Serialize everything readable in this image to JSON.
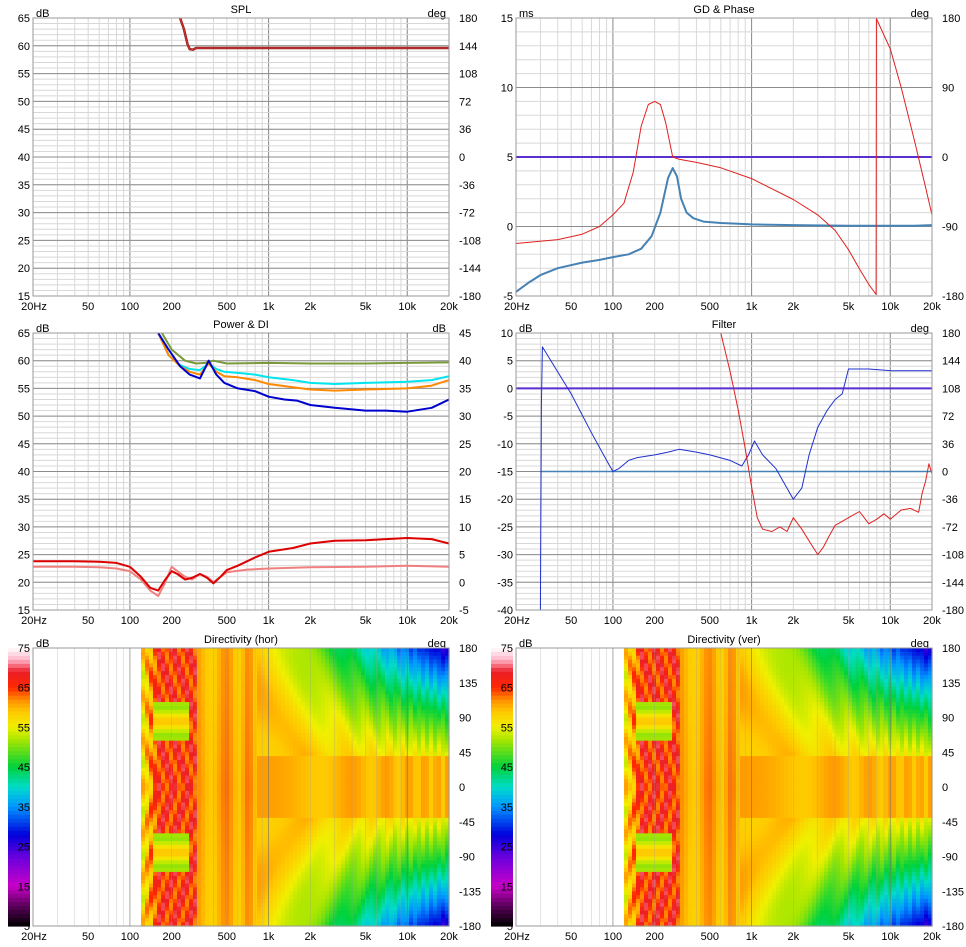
{
  "chart_data": [
    {
      "type": "line",
      "title": "SPL",
      "ylabel": "dB",
      "y2label": "deg",
      "xscale": "log",
      "xlim": [
        20,
        20000
      ],
      "ylim": [
        15,
        65
      ],
      "y2lim": [
        -180,
        180
      ],
      "x_ticks": [
        "20Hz",
        "50",
        "100",
        "200",
        "500",
        "1k",
        "2k",
        "5k",
        "10k",
        "20k"
      ],
      "y_ticks": [
        "65",
        "60",
        "55",
        "50",
        "45",
        "40",
        "35",
        "30",
        "25",
        "20",
        "15"
      ],
      "y2_ticks": [
        "180",
        "144",
        "108",
        "72",
        "36",
        "0",
        "-36",
        "-72",
        "-108",
        "-144",
        "-180"
      ],
      "grid": true,
      "series": [
        {
          "color": "#8b2020",
          "width": 2.5,
          "axis": "y",
          "x": [
            230,
            245,
            260,
            270,
            285,
            300,
            20000
          ],
          "y": [
            65,
            63,
            60.3,
            59.4,
            59.3,
            59.6,
            59.6
          ]
        },
        {
          "color": "#e03030",
          "width": 1,
          "axis": "y",
          "x": [
            230,
            245,
            260,
            270,
            285,
            300,
            20000
          ],
          "y": [
            65,
            63,
            60.3,
            59.4,
            59.3,
            59.6,
            59.6
          ]
        }
      ]
    },
    {
      "type": "line",
      "title": "GD & Phase",
      "ylabel": "ms",
      "y2label": "deg",
      "xscale": "log",
      "xlim": [
        20,
        20000
      ],
      "ylim": [
        -5,
        15
      ],
      "y2lim": [
        -180,
        180
      ],
      "x_ticks": [
        "20Hz",
        "50",
        "100",
        "200",
        "500",
        "1k",
        "2k",
        "5k",
        "10k",
        "20k"
      ],
      "y_ticks": [
        "15",
        "10",
        "5",
        "0",
        "-5"
      ],
      "y2_ticks": [
        "180",
        "90",
        "0",
        "-90",
        "-180"
      ],
      "grid": true,
      "series": [
        {
          "color": "#5a2fd0",
          "width": 2,
          "axis": "y",
          "x": [
            20,
            20000
          ],
          "y": [
            5,
            5
          ]
        },
        {
          "color": "#4682b4",
          "width": 2,
          "axis": "y",
          "x": [
            20,
            25,
            30,
            40,
            60,
            80,
            100,
            130,
            160,
            190,
            220,
            250,
            270,
            290,
            310,
            340,
            380,
            450,
            600,
            800,
            1000,
            2000,
            5000,
            10000,
            15000,
            20000
          ],
          "y": [
            -4.7,
            -4,
            -3.5,
            -3.0,
            -2.6,
            -2.4,
            -2.2,
            -2.0,
            -1.6,
            -0.7,
            1.0,
            3.5,
            4.2,
            3.6,
            2.0,
            1.0,
            0.6,
            0.35,
            0.25,
            0.2,
            0.15,
            0.1,
            0.05,
            0.05,
            0.05,
            0.1
          ]
        },
        {
          "color": "#e02020",
          "width": 1,
          "axis": "y2",
          "x": [
            20,
            40,
            60,
            80,
            100,
            120,
            140,
            160,
            180,
            200,
            220,
            240,
            270,
            300,
            400,
            600,
            1000,
            2000,
            3000,
            4000,
            5000,
            6000,
            7000,
            7900,
            7950,
            8000,
            10000,
            12000,
            15000,
            18000,
            20000
          ],
          "y": [
            -112,
            -107,
            -100,
            -90,
            -75,
            -60,
            -20,
            40,
            68,
            72,
            68,
            45,
            0,
            -3,
            -7,
            -14,
            -28,
            -55,
            -75,
            -95,
            -120,
            -145,
            -165,
            -178,
            180,
            178,
            140,
            90,
            20,
            -40,
            -75
          ]
        }
      ]
    },
    {
      "type": "line",
      "title": "Power & DI",
      "ylabel": "dB",
      "y2label": "dB",
      "xscale": "log",
      "xlim": [
        20,
        20000
      ],
      "ylim": [
        15,
        65
      ],
      "y2lim": [
        -5,
        45
      ],
      "x_ticks": [
        "20Hz",
        "50",
        "100",
        "200",
        "500",
        "1k",
        "2k",
        "5k",
        "10k",
        "20k"
      ],
      "y_ticks": [
        "65",
        "60",
        "55",
        "50",
        "45",
        "40",
        "35",
        "30",
        "25",
        "20",
        "15"
      ],
      "y2_ticks": [
        "45",
        "40",
        "35",
        "30",
        "25",
        "20",
        "15",
        "10",
        "5",
        "0",
        "-5"
      ],
      "grid": true,
      "series": [
        {
          "color": "#7a9a3a",
          "width": 2,
          "axis": "y",
          "x": [
            170,
            200,
            250,
            300,
            350,
            400,
            500,
            1000,
            2000,
            5000,
            10000,
            20000
          ],
          "y": [
            65,
            62,
            60,
            59.5,
            59.6,
            60,
            59.5,
            59.6,
            59.5,
            59.5,
            59.6,
            59.7
          ]
        },
        {
          "color": "#00e5ee",
          "width": 2,
          "axis": "y",
          "x": [
            160,
            190,
            230,
            270,
            320,
            370,
            420,
            480,
            600,
            800,
            1000,
            1500,
            2000,
            3000,
            5000,
            10000,
            15000,
            20000
          ],
          "y": [
            65,
            61,
            59.2,
            58.5,
            58.3,
            59.5,
            58.5,
            58.0,
            57.8,
            57.5,
            57.0,
            56.5,
            56.0,
            55.8,
            56.0,
            56.2,
            56.5,
            57.2
          ]
        },
        {
          "color": "#ff8800",
          "width": 2,
          "axis": "y",
          "x": [
            160,
            190,
            230,
            270,
            320,
            370,
            420,
            480,
            600,
            800,
            1000,
            1500,
            2000,
            3000,
            5000,
            10000,
            15000,
            20000
          ],
          "y": [
            65,
            61,
            59.0,
            58.0,
            57.5,
            59.5,
            58.0,
            57.2,
            57.0,
            56.5,
            55.8,
            55.2,
            54.8,
            54.6,
            54.8,
            55.0,
            55.5,
            56.5
          ]
        },
        {
          "color": "#0000cc",
          "width": 2,
          "axis": "y",
          "x": [
            160,
            190,
            230,
            270,
            320,
            370,
            420,
            480,
            600,
            800,
            1000,
            1300,
            1600,
            2000,
            3000,
            5000,
            7000,
            10000,
            15000,
            20000
          ],
          "y": [
            65,
            62,
            59.0,
            57.5,
            56.8,
            60,
            57.5,
            56.0,
            55.0,
            54.5,
            53.5,
            53.0,
            52.8,
            52.0,
            51.5,
            51.0,
            51.0,
            50.8,
            51.5,
            53.0
          ]
        },
        {
          "color": "#f08080",
          "width": 2,
          "axis": "y",
          "x": [
            20,
            40,
            60,
            80,
            100,
            120,
            140,
            160,
            180,
            200,
            220,
            250,
            280,
            320,
            360,
            400,
            450,
            500,
            700,
            1000,
            2000,
            5000,
            10000,
            20000
          ],
          "y": [
            22.8,
            22.8,
            22.7,
            22.5,
            22.0,
            20.5,
            18.5,
            17.5,
            20.0,
            22.8,
            22.0,
            21.0,
            20.5,
            21.5,
            21.0,
            20.0,
            21.0,
            21.8,
            22.3,
            22.5,
            22.7,
            22.8,
            23.0,
            22.8
          ]
        },
        {
          "color": "#dd0000",
          "width": 2,
          "axis": "y",
          "x": [
            20,
            40,
            60,
            80,
            100,
            120,
            140,
            160,
            180,
            200,
            220,
            250,
            280,
            320,
            360,
            400,
            450,
            500,
            600,
            800,
            1000,
            1500,
            2000,
            3000,
            5000,
            10000,
            15000,
            20000
          ],
          "y": [
            23.8,
            23.8,
            23.7,
            23.5,
            22.8,
            21.0,
            19.0,
            18.5,
            20.5,
            22.0,
            21.5,
            20.5,
            20.8,
            21.5,
            20.8,
            19.8,
            21.0,
            22.2,
            23.0,
            24.5,
            25.5,
            26.2,
            27.0,
            27.5,
            27.6,
            28.0,
            27.8,
            27.0
          ]
        }
      ]
    },
    {
      "type": "line",
      "title": "Filter",
      "ylabel": "dB",
      "y2label": "deg",
      "xscale": "log",
      "xlim": [
        20,
        20000
      ],
      "ylim": [
        -40,
        10
      ],
      "y2lim": [
        -180,
        180
      ],
      "x_ticks": [
        "20Hz",
        "50",
        "100",
        "200",
        "500",
        "1k",
        "2k",
        "5k",
        "10k",
        "20k"
      ],
      "y_ticks": [
        "10",
        "5",
        "0",
        "-5",
        "-10",
        "-15",
        "-20",
        "-25",
        "-30",
        "-35",
        "-40"
      ],
      "y2_ticks": [
        "180",
        "144",
        "108",
        "72",
        "36",
        "0",
        "-36",
        "-72",
        "-108",
        "-144",
        "-180"
      ],
      "grid": true,
      "series": [
        {
          "color": "#5a2fd0",
          "width": 2,
          "axis": "y",
          "x": [
            20,
            20000
          ],
          "y": [
            0,
            0
          ]
        },
        {
          "color": "#4682b4",
          "width": 1.5,
          "axis": "y",
          "x": [
            30,
            20000
          ],
          "y": [
            -15,
            -15
          ]
        },
        {
          "color": "#2030d0",
          "width": 1,
          "axis": "y",
          "x": [
            30,
            30.5,
            31,
            50,
            70,
            90,
            100,
            110,
            130,
            150,
            200,
            250,
            300,
            400,
            500,
            700,
            850,
            950,
            1050,
            1200,
            1500,
            1800,
            2000,
            2300,
            2600,
            3000,
            3500,
            4000,
            4500,
            5000,
            7000,
            10000,
            20000
          ],
          "y": [
            -40,
            -3,
            7.5,
            -1,
            -8,
            -13,
            -15,
            -14.5,
            -13,
            -12.5,
            -12,
            -11.5,
            -11,
            -11.5,
            -12,
            -13,
            -14,
            -12,
            -9.5,
            -12,
            -14.5,
            -18,
            -20,
            -18,
            -12,
            -7,
            -4,
            -2,
            -1,
            3.5,
            3.5,
            3.2,
            3.2
          ]
        },
        {
          "color": "#e02020",
          "width": 1,
          "axis": "y2",
          "x": [
            600,
            700,
            800,
            900,
            1000,
            1100,
            1200,
            1400,
            1600,
            1800,
            2000,
            2300,
            2700,
            3000,
            3300,
            3600,
            4000,
            5000,
            6000,
            7000,
            8000,
            9000,
            10000,
            12000,
            14000,
            16000,
            17000,
            18000,
            19000,
            20000
          ],
          "y": [
            180,
            130,
            80,
            30,
            -20,
            -60,
            -75,
            -78,
            -72,
            -78,
            -60,
            -75,
            -95,
            -108,
            -98,
            -85,
            -70,
            -60,
            -52,
            -68,
            -62,
            -55,
            -62,
            -50,
            -48,
            -53,
            -28,
            -12,
            10,
            -3
          ]
        }
      ]
    },
    {
      "type": "heatmap",
      "title": "Directivity (hor)",
      "ylabel": "dB",
      "y2label": "deg",
      "xscale": "log",
      "xlim": [
        20,
        20000
      ],
      "ylim": [
        -180,
        180
      ],
      "colorbar_range": [
        5,
        75
      ],
      "x_ticks": [
        "20Hz",
        "50",
        "100",
        "200",
        "500",
        "1k",
        "2k",
        "5k",
        "10k",
        "20k"
      ],
      "colorbar_ticks": [
        "75",
        "65",
        "55",
        "45",
        "35",
        "25",
        "15",
        "5"
      ],
      "y2_ticks": [
        "180",
        "135",
        "90",
        "45",
        "0",
        "-45",
        "-90",
        "-135",
        "-180"
      ]
    },
    {
      "type": "heatmap",
      "title": "Directivity (ver)",
      "ylabel": "dB",
      "y2label": "deg",
      "xscale": "log",
      "xlim": [
        20,
        20000
      ],
      "ylim": [
        -180,
        180
      ],
      "colorbar_range": [
        5,
        75
      ],
      "x_ticks": [
        "20Hz",
        "50",
        "100",
        "200",
        "500",
        "1k",
        "2k",
        "5k",
        "10k",
        "20k"
      ],
      "colorbar_ticks": [
        "75",
        "65",
        "55",
        "45",
        "35",
        "25",
        "15",
        "5"
      ],
      "y2_ticks": [
        "180",
        "135",
        "90",
        "45",
        "0",
        "-45",
        "-90",
        "-135",
        "-180"
      ]
    }
  ]
}
